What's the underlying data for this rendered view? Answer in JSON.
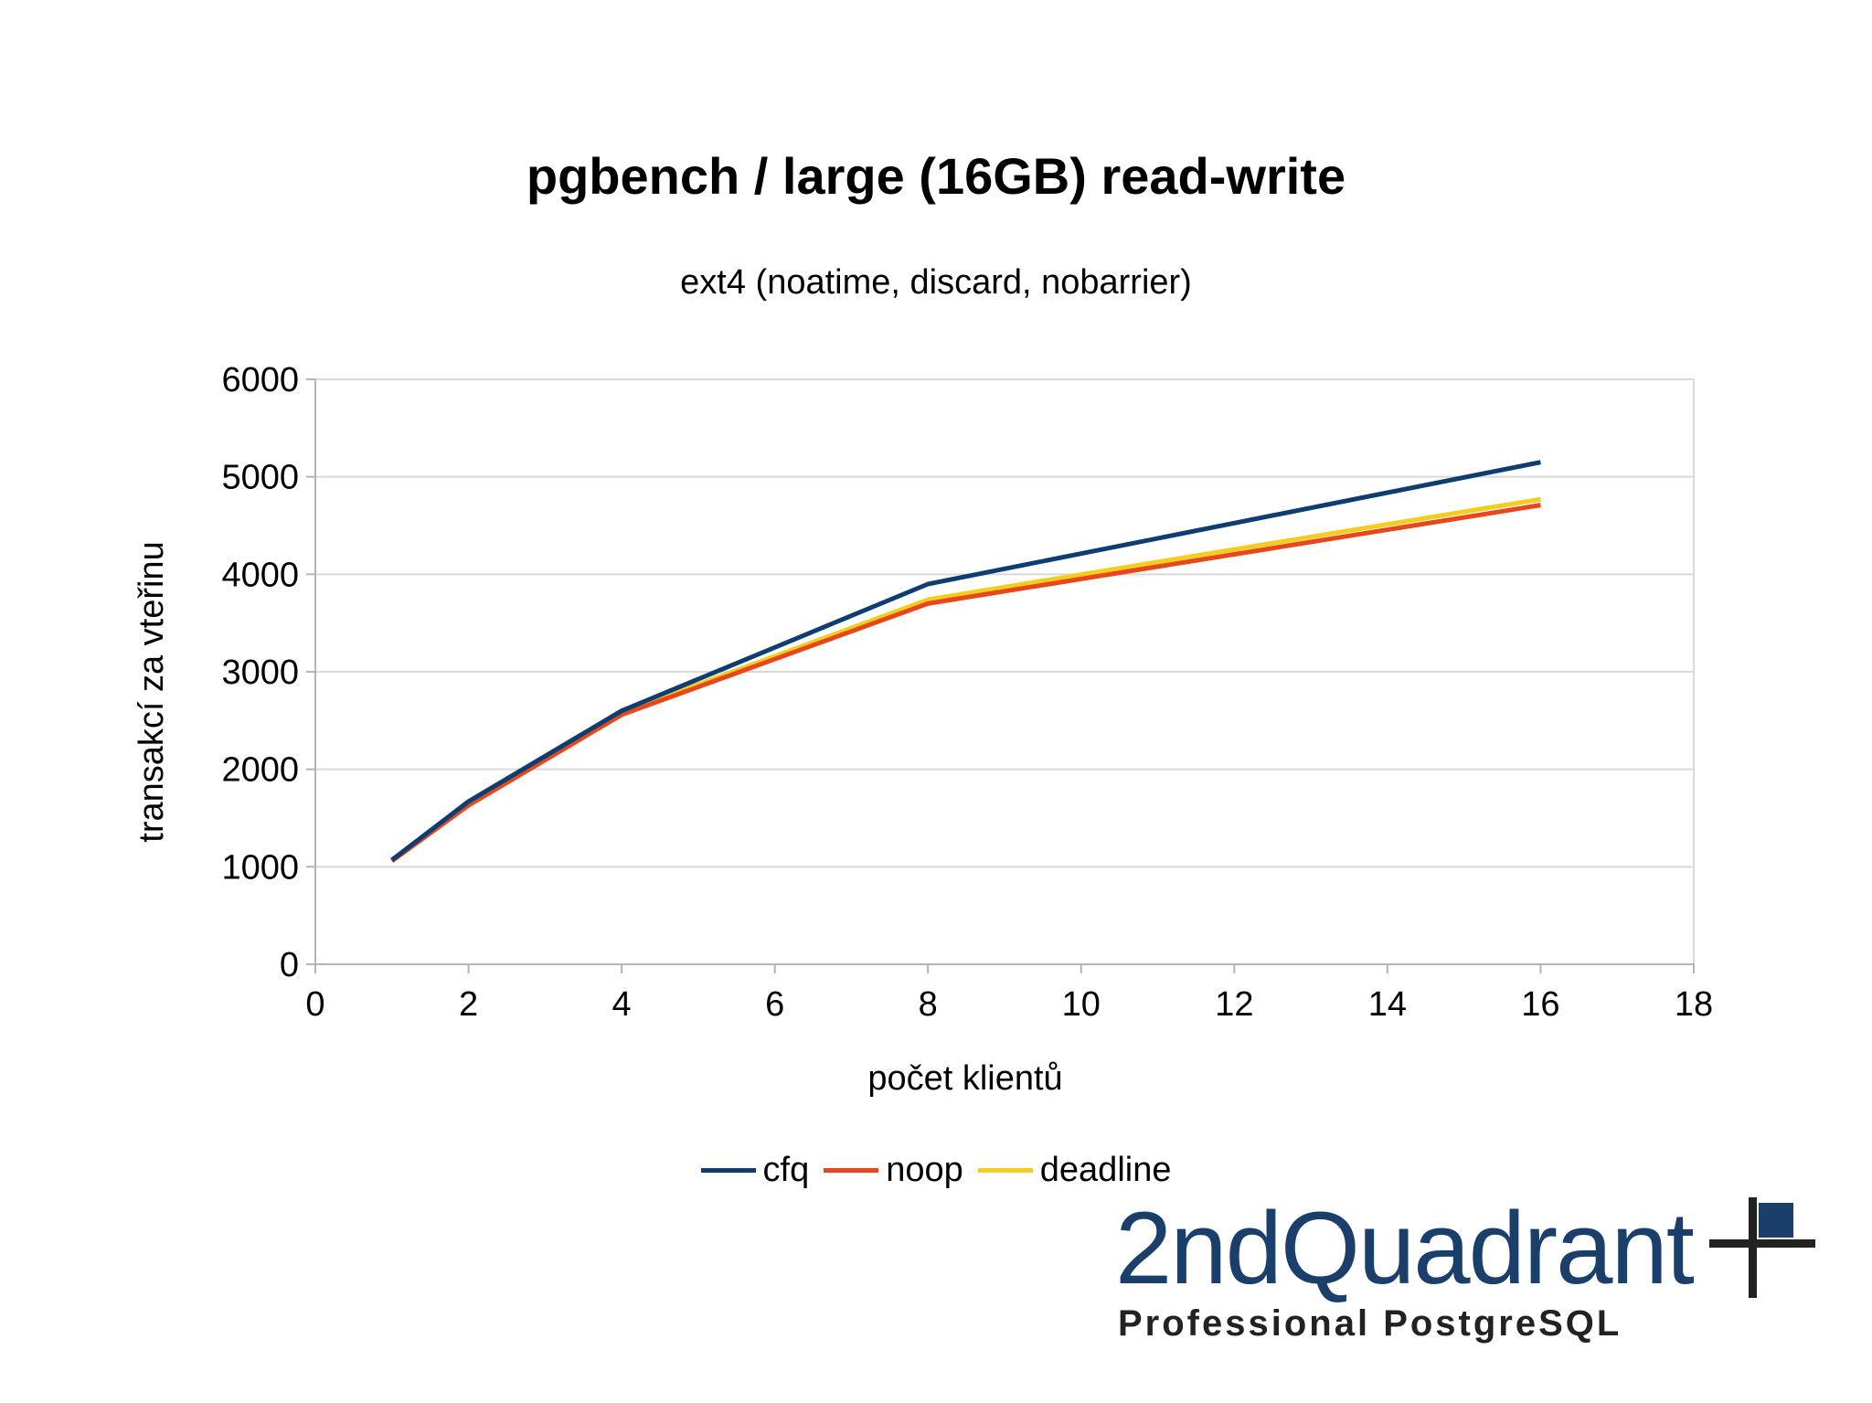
{
  "chart_data": {
    "type": "line",
    "title": "pgbench / large (16GB) read-write",
    "subtitle": "ext4 (noatime, discard, nobarrier)",
    "xlabel": "počet klientů",
    "ylabel": "transakcí za vteřinu",
    "xlim": [
      0,
      18
    ],
    "ylim": [
      0,
      6000
    ],
    "xticks": [
      0,
      2,
      4,
      6,
      8,
      10,
      12,
      14,
      16,
      18
    ],
    "yticks": [
      0,
      1000,
      2000,
      3000,
      4000,
      5000,
      6000
    ],
    "grid": true,
    "legend_position": "bottom",
    "x": [
      1,
      2,
      4,
      8,
      16
    ],
    "series": [
      {
        "name": "cfq",
        "color": "#0e3d6f",
        "values": [
          1070,
          1670,
          2600,
          3900,
          5150
        ]
      },
      {
        "name": "noop",
        "color": "#e8461b",
        "values": [
          1060,
          1630,
          2560,
          3700,
          4710
        ]
      },
      {
        "name": "deadline",
        "color": "#f4ce1f",
        "values": [
          1060,
          1640,
          2580,
          3740,
          4770
        ]
      }
    ]
  },
  "logo": {
    "wordmark": "2ndQuadrant",
    "tagline": "Professional PostgreSQL",
    "primary_color": "#1b3f6b",
    "secondary_color": "#222222"
  }
}
